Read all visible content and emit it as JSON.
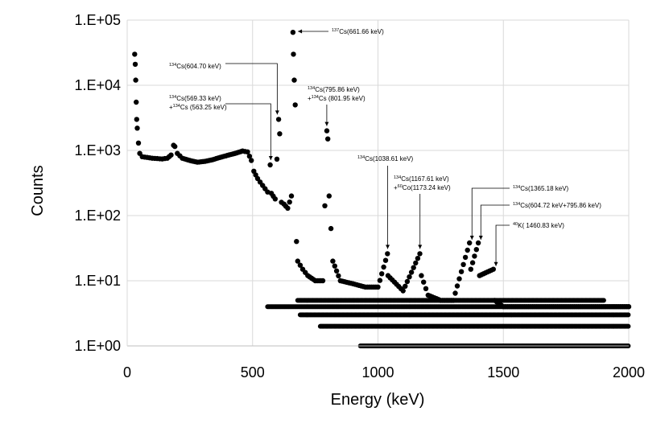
{
  "chart_data": {
    "type": "scatter",
    "title": "",
    "xlabel": "Energy (keV)",
    "ylabel": "Counts",
    "xlim": [
      0,
      2000
    ],
    "ylim": [
      1,
      100000
    ],
    "y_scale": "log",
    "grid": true,
    "x_ticks": [
      "0",
      "500",
      "1000",
      "1500",
      "2000"
    ],
    "y_ticks": [
      "1.E+00",
      "1.E+01",
      "1.E+02",
      "1.E+03",
      "1.E+04",
      "1.E+05"
    ],
    "marker_color": "#000000",
    "spectrum": [
      [
        30,
        30000
      ],
      [
        32,
        21000
      ],
      [
        34,
        12000
      ],
      [
        36,
        5500
      ],
      [
        38,
        3000
      ],
      [
        40,
        2200
      ],
      [
        45,
        1300
      ],
      [
        50,
        900
      ],
      [
        60,
        800
      ],
      [
        80,
        780
      ],
      [
        100,
        760
      ],
      [
        120,
        750
      ],
      [
        140,
        740
      ],
      [
        160,
        760
      ],
      [
        175,
        850
      ],
      [
        185,
        1200
      ],
      [
        190,
        1150
      ],
      [
        200,
        900
      ],
      [
        220,
        760
      ],
      [
        250,
        700
      ],
      [
        280,
        660
      ],
      [
        310,
        680
      ],
      [
        340,
        720
      ],
      [
        370,
        780
      ],
      [
        400,
        840
      ],
      [
        430,
        900
      ],
      [
        460,
        980
      ],
      [
        480,
        950
      ],
      [
        495,
        700
      ],
      [
        505,
        480
      ],
      [
        520,
        370
      ],
      [
        540,
        290
      ],
      [
        560,
        230
      ],
      [
        570,
        600
      ],
      [
        575,
        220
      ],
      [
        590,
        180
      ],
      [
        604,
        3000
      ],
      [
        608,
        1800
      ],
      [
        615,
        160
      ],
      [
        625,
        150
      ],
      [
        640,
        130
      ],
      [
        655,
        200
      ],
      [
        661,
        65000
      ],
      [
        663,
        30000
      ],
      [
        666,
        12000
      ],
      [
        670,
        5000
      ],
      [
        675,
        40
      ],
      [
        680,
        20
      ],
      [
        700,
        15
      ],
      [
        720,
        12
      ],
      [
        750,
        10
      ],
      [
        780,
        10
      ],
      [
        796,
        2000
      ],
      [
        800,
        1500
      ],
      [
        805,
        200
      ],
      [
        820,
        20
      ],
      [
        850,
        10
      ],
      [
        900,
        9
      ],
      [
        950,
        8
      ],
      [
        1000,
        8
      ],
      [
        1038,
        26
      ],
      [
        1040,
        12
      ],
      [
        1100,
        7
      ],
      [
        1167,
        26
      ],
      [
        1173,
        12
      ],
      [
        1200,
        6
      ],
      [
        1250,
        5
      ],
      [
        1300,
        5
      ],
      [
        1365,
        38
      ],
      [
        1370,
        15
      ],
      [
        1400,
        38
      ],
      [
        1405,
        12
      ],
      [
        1460,
        15
      ],
      [
        1465,
        5
      ],
      [
        1500,
        4
      ],
      [
        1550,
        4
      ],
      [
        1600,
        4
      ],
      [
        1650,
        4
      ],
      [
        1700,
        4
      ],
      [
        1750,
        4
      ],
      [
        1800,
        4
      ],
      [
        1850,
        4
      ],
      [
        1900,
        4
      ],
      [
        1950,
        4
      ],
      [
        2000,
        4
      ]
    ],
    "annotations": [
      {
        "sup1": "137",
        "text1": "Cs(661.66 keV)",
        "sup2": "",
        "text2": "",
        "peak": [
          661.66,
          65000
        ]
      },
      {
        "sup1": "134",
        "text1": "Cs(604.70 keV)",
        "sup2": "",
        "text2": "",
        "peak": [
          604.7,
          3000
        ]
      },
      {
        "sup1": "134",
        "text1": "Cs(569.33 keV)",
        "sup2": "134",
        "text2": "Cs (563.25 keV)",
        "prefix2": "+",
        "peak": [
          569.33,
          600
        ]
      },
      {
        "sup1": "134",
        "text1": "Cs(795.86 keV)",
        "sup2": "134",
        "text2": "Cs (801.95 keV)",
        "prefix2": "+",
        "peak": [
          795.86,
          2000
        ]
      },
      {
        "sup1": "134",
        "text1": "Cs(1038.61 keV)",
        "sup2": "",
        "text2": "",
        "peak": [
          1038.61,
          26
        ]
      },
      {
        "sup1": "134",
        "text1": "Cs(1167.61 keV)",
        "sup2": "60",
        "text2": "Co(1173.24 keV)",
        "prefix2": "+",
        "peak": [
          1167.61,
          26
        ]
      },
      {
        "sup1": "134",
        "text1": "Cs(1365.18 keV)",
        "sup2": "",
        "text2": "",
        "peak": [
          1365.18,
          38
        ]
      },
      {
        "sup1": "134",
        "text1": "Cs(604.72 keV+795.86 keV)",
        "sup2": "",
        "text2": "",
        "peak": [
          1400.58,
          38
        ]
      },
      {
        "sup1": "40",
        "text1": "K( 1460.83 keV)",
        "sup2": "",
        "text2": "",
        "peak": [
          1460.83,
          15
        ]
      }
    ]
  }
}
